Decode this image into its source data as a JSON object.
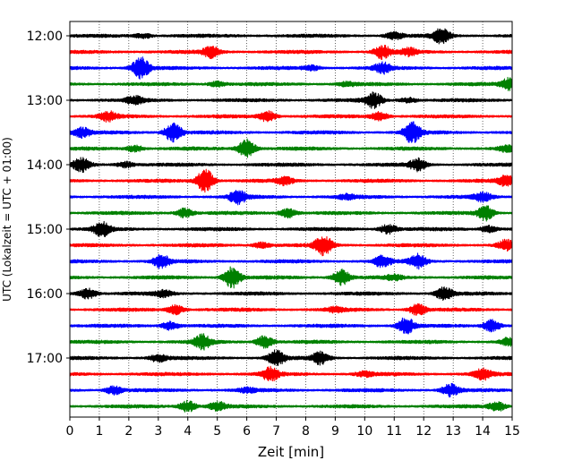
{
  "chart_data": {
    "type": "line",
    "title": "",
    "xlabel": "Zeit  [min]",
    "ylabel": "UTC (Lokalzeit = UTC + 01:00)",
    "xlim": [
      0,
      15
    ],
    "x_ticks": [
      0,
      1,
      2,
      3,
      4,
      5,
      6,
      7,
      8,
      9,
      10,
      11,
      12,
      13,
      14,
      15
    ],
    "x_tick_labels": [
      "0",
      "1",
      "2",
      "3",
      "4",
      "5",
      "6",
      "7",
      "8",
      "9",
      "10",
      "11",
      "12",
      "13",
      "14",
      "15"
    ],
    "y_tick_labels": [
      "12:00",
      "13:00",
      "14:00",
      "15:00",
      "16:00",
      "17:00"
    ],
    "grid": "vertical dotted at each minute",
    "trace_interval_minutes": 15,
    "trace_color_cycle": [
      "#000000",
      "#ff0000",
      "#0000ff",
      "#008000"
    ],
    "series": [
      {
        "start": "12:00",
        "color": "#000000",
        "bursts": [
          [
            12.6,
            1.6
          ],
          [
            11.0,
            0.8
          ],
          [
            2.5,
            0.5
          ]
        ]
      },
      {
        "start": "12:15",
        "color": "#ff0000",
        "bursts": [
          [
            4.8,
            1.2
          ],
          [
            10.6,
            1.4
          ],
          [
            11.5,
            0.8
          ]
        ]
      },
      {
        "start": "12:30",
        "color": "#0000ff",
        "bursts": [
          [
            2.4,
            2.4
          ],
          [
            10.6,
            1.1
          ],
          [
            8.2,
            0.5
          ]
        ]
      },
      {
        "start": "12:45",
        "color": "#008000",
        "bursts": [
          [
            14.9,
            1.3
          ],
          [
            5.0,
            0.6
          ],
          [
            9.4,
            0.4
          ]
        ]
      },
      {
        "start": "13:00",
        "color": "#000000",
        "bursts": [
          [
            10.3,
            1.6
          ],
          [
            2.2,
            0.8
          ],
          [
            11.5,
            0.5
          ]
        ]
      },
      {
        "start": "13:15",
        "color": "#ff0000",
        "bursts": [
          [
            1.3,
            1.0
          ],
          [
            6.7,
            1.1
          ],
          [
            10.5,
            0.9
          ]
        ]
      },
      {
        "start": "13:30",
        "color": "#0000ff",
        "bursts": [
          [
            3.5,
            2.2
          ],
          [
            11.6,
            2.2
          ],
          [
            0.4,
            1.0
          ]
        ]
      },
      {
        "start": "13:45",
        "color": "#008000",
        "bursts": [
          [
            6.0,
            2.0
          ],
          [
            2.2,
            0.7
          ],
          [
            14.8,
            0.6
          ]
        ]
      },
      {
        "start": "14:00",
        "color": "#000000",
        "bursts": [
          [
            0.4,
            1.4
          ],
          [
            11.8,
            1.3
          ],
          [
            1.9,
            0.6
          ]
        ]
      },
      {
        "start": "14:15",
        "color": "#ff0000",
        "bursts": [
          [
            4.6,
            2.6
          ],
          [
            14.8,
            1.1
          ],
          [
            7.3,
            0.8
          ]
        ]
      },
      {
        "start": "14:30",
        "color": "#0000ff",
        "bursts": [
          [
            5.7,
            1.5
          ],
          [
            14.0,
            0.9
          ],
          [
            9.4,
            0.5
          ]
        ]
      },
      {
        "start": "14:45",
        "color": "#008000",
        "bursts": [
          [
            3.9,
            1.0
          ],
          [
            7.4,
            1.0
          ],
          [
            14.1,
            1.6
          ]
        ]
      },
      {
        "start": "15:00",
        "color": "#000000",
        "bursts": [
          [
            1.1,
            1.5
          ],
          [
            10.8,
            1.0
          ],
          [
            14.2,
            0.7
          ]
        ]
      },
      {
        "start": "15:15",
        "color": "#ff0000",
        "bursts": [
          [
            8.6,
            2.2
          ],
          [
            14.8,
            1.1
          ],
          [
            6.5,
            0.6
          ]
        ]
      },
      {
        "start": "15:30",
        "color": "#0000ff",
        "bursts": [
          [
            3.1,
            1.4
          ],
          [
            10.6,
            1.2
          ],
          [
            11.8,
            1.5
          ]
        ]
      },
      {
        "start": "15:45",
        "color": "#008000",
        "bursts": [
          [
            5.5,
            2.3
          ],
          [
            9.2,
            1.7
          ],
          [
            11.0,
            0.5
          ]
        ]
      },
      {
        "start": "16:00",
        "color": "#000000",
        "bursts": [
          [
            12.7,
            1.4
          ],
          [
            0.6,
            1.2
          ],
          [
            3.2,
            0.7
          ]
        ]
      },
      {
        "start": "16:15",
        "color": "#ff0000",
        "bursts": [
          [
            3.6,
            1.0
          ],
          [
            11.8,
            1.2
          ],
          [
            9.0,
            0.5
          ]
        ]
      },
      {
        "start": "16:30",
        "color": "#0000ff",
        "bursts": [
          [
            11.4,
            1.8
          ],
          [
            14.3,
            1.4
          ],
          [
            3.4,
            0.9
          ]
        ]
      },
      {
        "start": "16:45",
        "color": "#008000",
        "bursts": [
          [
            4.5,
            1.5
          ],
          [
            6.6,
            1.3
          ],
          [
            14.9,
            0.9
          ]
        ]
      },
      {
        "start": "17:00",
        "color": "#000000",
        "bursts": [
          [
            7.0,
            1.7
          ],
          [
            8.5,
            1.3
          ],
          [
            3.0,
            0.8
          ]
        ]
      },
      {
        "start": "17:15",
        "color": "#ff0000",
        "bursts": [
          [
            6.8,
            1.4
          ],
          [
            14.0,
            1.2
          ],
          [
            10.0,
            0.5
          ]
        ]
      },
      {
        "start": "17:30",
        "color": "#0000ff",
        "bursts": [
          [
            12.9,
            1.3
          ],
          [
            1.5,
            0.9
          ],
          [
            6.0,
            0.5
          ]
        ]
      },
      {
        "start": "17:45",
        "color": "#008000",
        "bursts": [
          [
            4.0,
            1.2
          ],
          [
            5.0,
            1.0
          ],
          [
            14.5,
            1.0
          ]
        ]
      }
    ]
  }
}
